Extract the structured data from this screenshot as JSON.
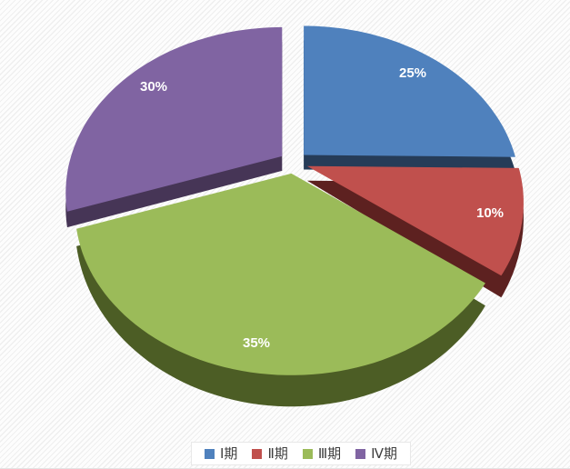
{
  "chart_data": {
    "type": "pie",
    "subtype": "3d-exploded-pie",
    "title": "",
    "start_angle_deg": 0,
    "direction": "clockwise",
    "slices": [
      {
        "label": "Ⅰ期",
        "value": 25,
        "percent_label": "25%",
        "color": "#4F81BD",
        "side_color": "#263C58"
      },
      {
        "label": "Ⅱ期",
        "value": 10,
        "percent_label": "10%",
        "color": "#C0504D",
        "side_color": "#5D2120"
      },
      {
        "label": "Ⅲ期",
        "value": 35,
        "percent_label": "35%",
        "color": "#9BBB59",
        "side_color": "#4C5D25"
      },
      {
        "label": "Ⅳ期",
        "value": 30,
        "percent_label": "30%",
        "color": "#8064A2",
        "side_color": "#463556"
      }
    ],
    "data_label_style": {
      "format": "percent",
      "color": "#FFFFFF",
      "bold": true
    },
    "legend": {
      "position": "bottom",
      "items": [
        {
          "label": "Ⅰ期",
          "color": "#4F81BD"
        },
        {
          "label": "Ⅱ期",
          "color": "#C0504D"
        },
        {
          "label": "Ⅲ期",
          "color": "#9BBB59"
        },
        {
          "label": "Ⅳ期",
          "color": "#8064A2"
        }
      ]
    }
  },
  "background": {
    "pattern": "diagonal-stripes",
    "base_color": "#FDFDFD",
    "stripe_color": "#EFEFEF"
  }
}
